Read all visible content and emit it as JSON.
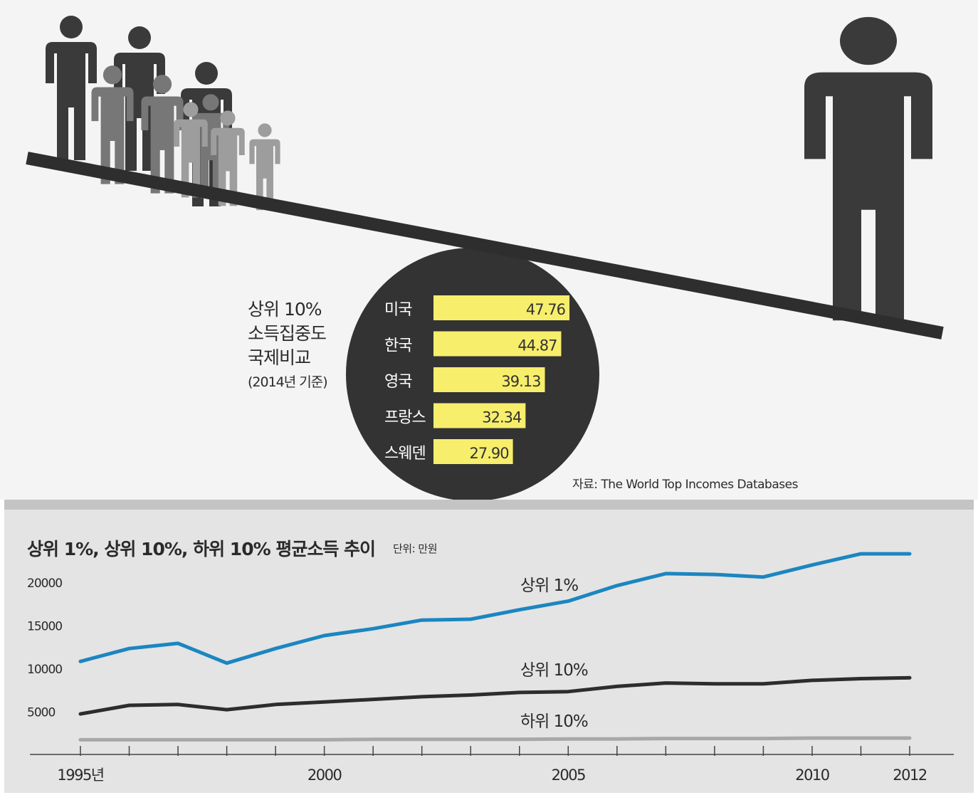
{
  "comparison": {
    "title_lines": [
      "상위 10%",
      "소득집중도",
      "국제비교"
    ],
    "basis": "(2014년 기준)",
    "bars_max": 50,
    "items": [
      {
        "country": "미국",
        "value": "47.76"
      },
      {
        "country": "한국",
        "value": "44.87"
      },
      {
        "country": "영국",
        "value": "39.13"
      },
      {
        "country": "프랑스",
        "value": "32.34"
      },
      {
        "country": "스웨덴",
        "value": "27.90"
      }
    ]
  },
  "source": "자료: The World Top Incomes Databases",
  "colors": {
    "bar": "#f7ee6c",
    "circle": "#333333",
    "top1": "#1b86c1",
    "top10": "#2e2c2c",
    "bottom10": "#a8a8a8",
    "figure_dark": "#3a3a3a",
    "figure_mid": "#777777",
    "figure_light": "#9d9d9d"
  },
  "chart_data": {
    "type": "line",
    "title": "상위 1%, 상위 10%, 하위 10% 평균소득 추이",
    "unit": "단위: 만원",
    "x": [
      1995,
      1996,
      1997,
      1998,
      1999,
      2000,
      2001,
      2002,
      2003,
      2004,
      2005,
      2006,
      2007,
      2008,
      2009,
      2010,
      2011,
      2012
    ],
    "x_tick_labels": [
      {
        "year": 1995,
        "label": "1995년"
      },
      {
        "year": 2000,
        "label": "2000"
      },
      {
        "year": 2005,
        "label": "2005"
      },
      {
        "year": 2010,
        "label": "2010"
      },
      {
        "year": 2012,
        "label": "2012"
      }
    ],
    "y_ticks": [
      20000,
      15000,
      10000,
      5000
    ],
    "ylim": [
      0,
      22000
    ],
    "series": [
      {
        "name": "상위 1%",
        "values": [
          10800,
          12300,
          12900,
          10600,
          12300,
          13800,
          14600,
          15600,
          15700,
          16800,
          17800,
          19600,
          21000,
          20900,
          20600,
          22000,
          23300,
          23300
        ]
      },
      {
        "name": "상위 10%",
        "values": [
          4700,
          5700,
          5800,
          5200,
          5800,
          6100,
          6400,
          6700,
          6900,
          7200,
          7300,
          7900,
          8300,
          8200,
          8200,
          8600,
          8800,
          8900
        ]
      },
      {
        "name": "하위 10%",
        "values": [
          1700,
          1700,
          1700,
          1700,
          1700,
          1700,
          1750,
          1750,
          1750,
          1750,
          1800,
          1800,
          1850,
          1850,
          1850,
          1900,
          1900,
          1900
        ]
      }
    ]
  }
}
